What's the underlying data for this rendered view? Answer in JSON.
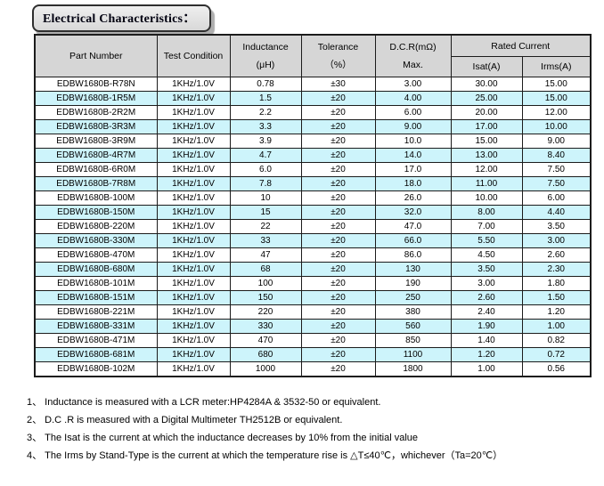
{
  "title": "Electrical Characteristics：",
  "table": {
    "headers": {
      "part_number": "Part Number",
      "test_condition": "Test Condition",
      "inductance_line1": "Inductance",
      "inductance_line2": "(μH)",
      "tolerance_line1": "Tolerance",
      "tolerance_line2": "（%）",
      "dcr_line1": "D.C.R(mΩ)",
      "dcr_line2": "Max.",
      "rated_current": "Rated Current",
      "isat": "Isat(A)",
      "irms": "Irms(A)"
    },
    "rows": [
      [
        "EDBW1680B-R78N",
        "1KHz/1.0V",
        "0.78",
        "±30",
        "3.00",
        "30.00",
        "15.00"
      ],
      [
        "EDBW1680B-1R5M",
        "1KHz/1.0V",
        "1.5",
        "±20",
        "4.00",
        "25.00",
        "15.00"
      ],
      [
        "EDBW1680B-2R2M",
        "1KHz/1.0V",
        "2.2",
        "±20",
        "6.00",
        "20.00",
        "12.00"
      ],
      [
        "EDBW1680B-3R3M",
        "1KHz/1.0V",
        "3.3",
        "±20",
        "9.00",
        "17.00",
        "10.00"
      ],
      [
        "EDBW1680B-3R9M",
        "1KHz/1.0V",
        "3.9",
        "±20",
        "10.0",
        "15.00",
        "9.00"
      ],
      [
        "EDBW1680B-4R7M",
        "1KHz/1.0V",
        "4.7",
        "±20",
        "14.0",
        "13.00",
        "8.40"
      ],
      [
        "EDBW1680B-6R0M",
        "1KHz/1.0V",
        "6.0",
        "±20",
        "17.0",
        "12.00",
        "7.50"
      ],
      [
        "EDBW1680B-7R8M",
        "1KHz/1.0V",
        "7.8",
        "±20",
        "18.0",
        "11.00",
        "7.50"
      ],
      [
        "EDBW1680B-100M",
        "1KHz/1.0V",
        "10",
        "±20",
        "26.0",
        "10.00",
        "6.00"
      ],
      [
        "EDBW1680B-150M",
        "1KHz/1.0V",
        "15",
        "±20",
        "32.0",
        "8.00",
        "4.40"
      ],
      [
        "EDBW1680B-220M",
        "1KHz/1.0V",
        "22",
        "±20",
        "47.0",
        "7.00",
        "3.50"
      ],
      [
        "EDBW1680B-330M",
        "1KHz/1.0V",
        "33",
        "±20",
        "66.0",
        "5.50",
        "3.00"
      ],
      [
        "EDBW1680B-470M",
        "1KHz/1.0V",
        "47",
        "±20",
        "86.0",
        "4.50",
        "2.60"
      ],
      [
        "EDBW1680B-680M",
        "1KHz/1.0V",
        "68",
        "±20",
        "130",
        "3.50",
        "2.30"
      ],
      [
        "EDBW1680B-101M",
        "1KHz/1.0V",
        "100",
        "±20",
        "190",
        "3.00",
        "1.80"
      ],
      [
        "EDBW1680B-151M",
        "1KHz/1.0V",
        "150",
        "±20",
        "250",
        "2.60",
        "1.50"
      ],
      [
        "EDBW1680B-221M",
        "1KHz/1.0V",
        "220",
        "±20",
        "380",
        "2.40",
        "1.20"
      ],
      [
        "EDBW1680B-331M",
        "1KHz/1.0V",
        "330",
        "±20",
        "560",
        "1.90",
        "1.00"
      ],
      [
        "EDBW1680B-471M",
        "1KHz/1.0V",
        "470",
        "±20",
        "850",
        "1.40",
        "0.82"
      ],
      [
        "EDBW1680B-681M",
        "1KHz/1.0V",
        "680",
        "±20",
        "1100",
        "1.20",
        "0.72"
      ],
      [
        "EDBW1680B-102M",
        "1KHz/1.0V",
        "1000",
        "±20",
        "1800",
        "1.00",
        "0.56"
      ]
    ]
  },
  "notes": [
    "1、 Inductance is measured with a LCR meter:HP4284A & 3532-50 or equivalent.",
    "2、 D.C .R is measured with a Digital Multimeter TH2512B or equivalent.",
    "3、 The Isat is the current at which the inductance decreases by 10% from the initial value",
    "4、 The Irms by Stand-Type is the current at which the temperature rise is △T≤40℃，whichever（Ta=20℃）"
  ],
  "colors": {
    "header_bg": "#d6d6d6",
    "alt_row_bg": "#cdf4fb",
    "border": "#1c1c1c",
    "title_box_bg": "#e3e3e3"
  }
}
